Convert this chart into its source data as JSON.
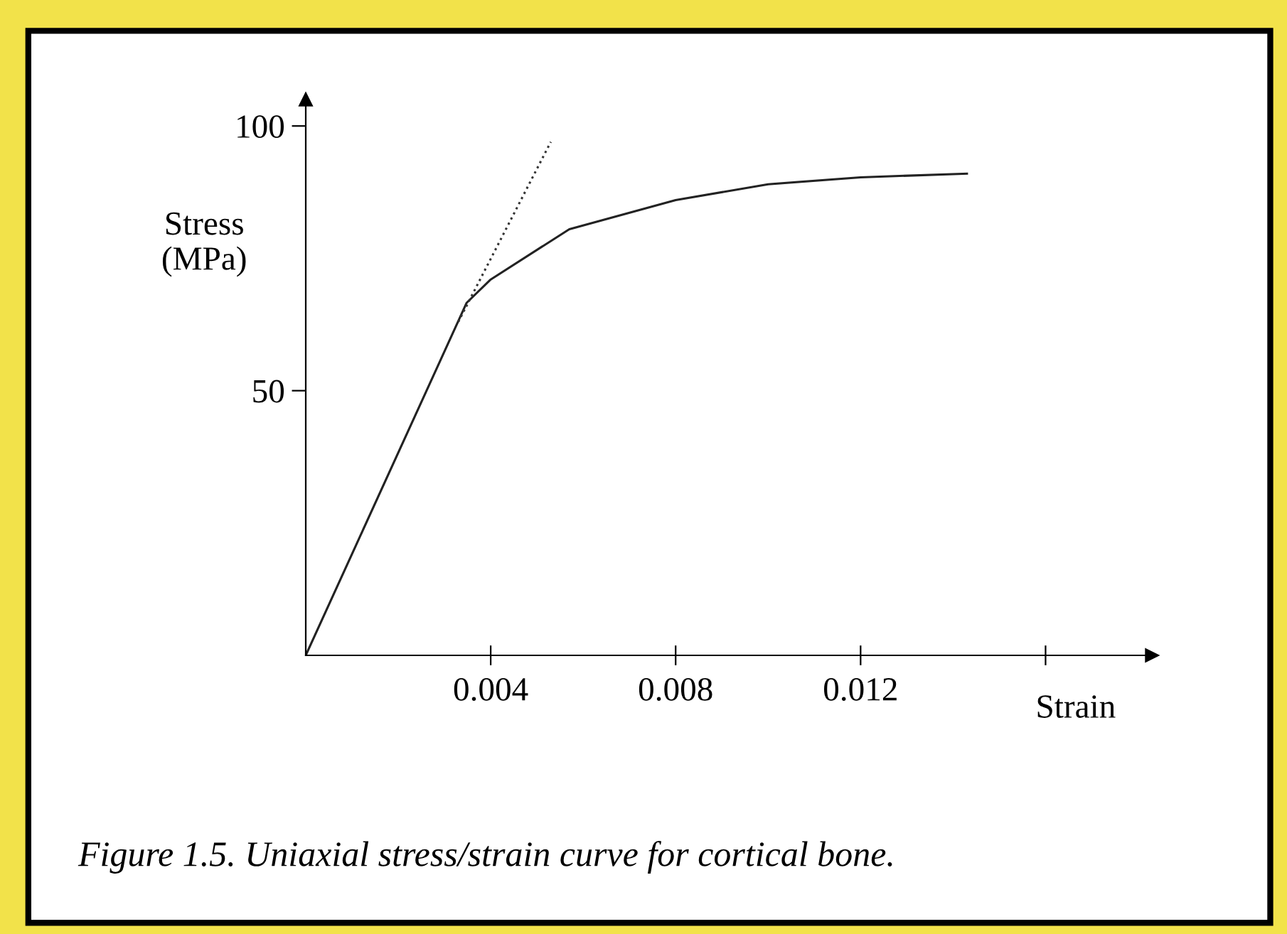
{
  "chart_data": {
    "type": "line",
    "xlabel": "Strain",
    "ylabel": "Stress\n(MPa)",
    "annotations": [
      "Figure 1.5. Uniaxial stress/strain curve for cortical bone."
    ],
    "series": [
      {
        "color": "#222222",
        "line_style": "solid",
        "x": [
          0,
          0.00348,
          0.004,
          0.0057,
          0.008,
          0.01,
          0.012,
          0.0143
        ],
        "values": [
          0,
          66.6,
          71,
          80.5,
          86,
          89,
          90.3,
          91
        ]
      },
      {
        "color": "#333333",
        "line_style": "dotted",
        "x": [
          0.0033,
          0.0053
        ],
        "values": [
          63,
          97
        ]
      }
    ],
    "xlim": [
      0,
      0.0183
    ],
    "ylim": [
      0,
      105
    ],
    "xticks": [
      0.004,
      0.008,
      0.012,
      {
        "value": 0.016,
        "label": null
      }
    ],
    "yticks": [
      50,
      100
    ],
    "grid": false,
    "legend": false,
    "marker": "none"
  }
}
